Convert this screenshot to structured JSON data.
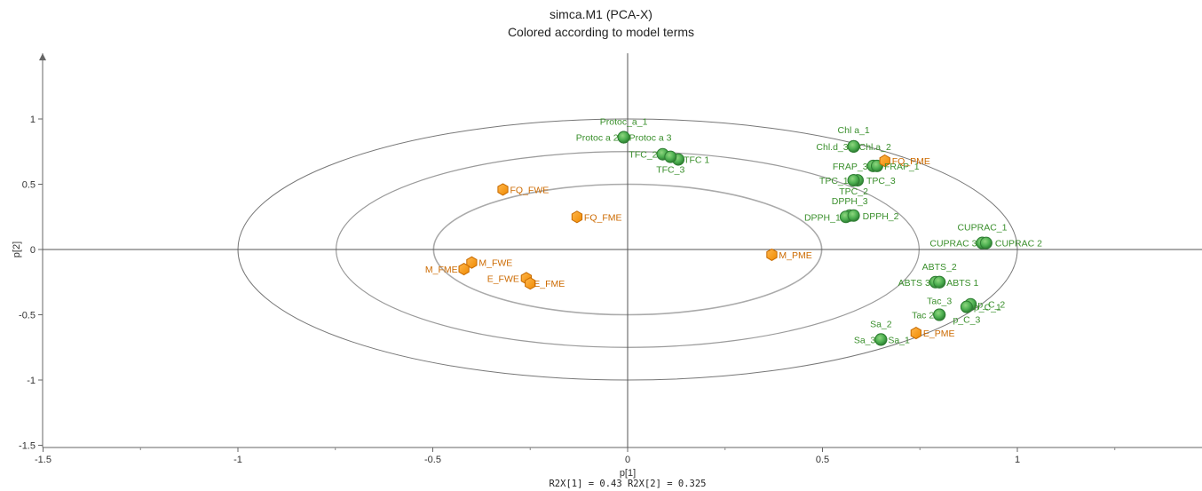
{
  "chart_data": {
    "type": "scatter",
    "title": "simca.M1 (PCA-X)",
    "subtitle": "Colored according to model terms",
    "xlabel": "p[1]",
    "ylabel": "p[2]",
    "footer": "R2X[1] = 0.43  R2X[2] = 0.325",
    "xlim": [
      -1.5,
      1.5
    ],
    "ylim": [
      -1.5,
      1.5
    ],
    "xticks": [
      "-1.5",
      "-1",
      "-0.5",
      "0",
      "0.5",
      "1"
    ],
    "yticks": [
      "1",
      "0.5",
      "0",
      "-0.5",
      "-1",
      "-1.5"
    ],
    "colors": {
      "variable": "#4caf50",
      "term": "#ff9800",
      "variable_label": "#3a8f2c",
      "term_label": "#cc6a00"
    },
    "variables": [
      {
        "label": "Protoc_a_1",
        "x": -0.01,
        "y": 0.86
      },
      {
        "label": "Protoc a 2",
        "x": -0.01,
        "y": 0.86
      },
      {
        "label": "Protoc a 3",
        "x": -0.01,
        "y": 0.86
      },
      {
        "label": "TFC_2",
        "x": 0.09,
        "y": 0.73
      },
      {
        "label": "TFC 1",
        "x": 0.13,
        "y": 0.69
      },
      {
        "label": "TFC_3",
        "x": 0.11,
        "y": 0.71
      },
      {
        "label": "Chl a_1",
        "x": 0.58,
        "y": 0.79
      },
      {
        "label": "Chl.d_3",
        "x": 0.58,
        "y": 0.79
      },
      {
        "label": "Chl.a_2",
        "x": 0.58,
        "y": 0.79
      },
      {
        "label": "FRAP_3",
        "x": 0.63,
        "y": 0.64
      },
      {
        "label": "FRAP_1",
        "x": 0.64,
        "y": 0.64
      },
      {
        "label": "TPC_1",
        "x": 0.58,
        "y": 0.53
      },
      {
        "label": "TPC_3",
        "x": 0.59,
        "y": 0.53
      },
      {
        "label": "TPC_2",
        "x": 0.58,
        "y": 0.53
      },
      {
        "label": "DPPH_3",
        "x": 0.57,
        "y": 0.26
      },
      {
        "label": "DPPH_1",
        "x": 0.56,
        "y": 0.25
      },
      {
        "label": "DPPH_2",
        "x": 0.58,
        "y": 0.26
      },
      {
        "label": "CUPRAC_1",
        "x": 0.91,
        "y": 0.05
      },
      {
        "label": "CUPRAC 3",
        "x": 0.91,
        "y": 0.05
      },
      {
        "label": "CUPRAC 2",
        "x": 0.92,
        "y": 0.05
      },
      {
        "label": "ABTS_2",
        "x": 0.8,
        "y": -0.25
      },
      {
        "label": "ABTS 3",
        "x": 0.79,
        "y": -0.25
      },
      {
        "label": "ABTS 1",
        "x": 0.8,
        "y": -0.25
      },
      {
        "label": "Tac_3",
        "x": 0.8,
        "y": -0.5
      },
      {
        "label": "Tac 2",
        "x": 0.8,
        "y": -0.5
      },
      {
        "label": "p_C_1",
        "x": 0.87,
        "y": -0.44
      },
      {
        "label": "p_C_2",
        "x": 0.88,
        "y": -0.42
      },
      {
        "label": "p_C_3",
        "x": 0.87,
        "y": -0.44
      },
      {
        "label": "Sa_2",
        "x": 0.65,
        "y": -0.69
      },
      {
        "label": "Sa_3",
        "x": 0.65,
        "y": -0.69
      },
      {
        "label": "Sa_1",
        "x": 0.65,
        "y": -0.69
      }
    ],
    "terms": [
      {
        "label": "FQ_PME",
        "x": 0.66,
        "y": 0.68
      },
      {
        "label": "FQ_FWE",
        "x": -0.32,
        "y": 0.46
      },
      {
        "label": "FQ_FME",
        "x": -0.13,
        "y": 0.25
      },
      {
        "label": "M_PME",
        "x": 0.37,
        "y": -0.04
      },
      {
        "label": "M_FWE",
        "x": -0.4,
        "y": -0.1
      },
      {
        "label": "M_FME",
        "x": -0.42,
        "y": -0.15
      },
      {
        "label": "E_FWE",
        "x": -0.26,
        "y": -0.22
      },
      {
        "label": "E_FME",
        "x": -0.25,
        "y": -0.26
      },
      {
        "label": "E_PME",
        "x": 0.74,
        "y": -0.64
      }
    ]
  }
}
